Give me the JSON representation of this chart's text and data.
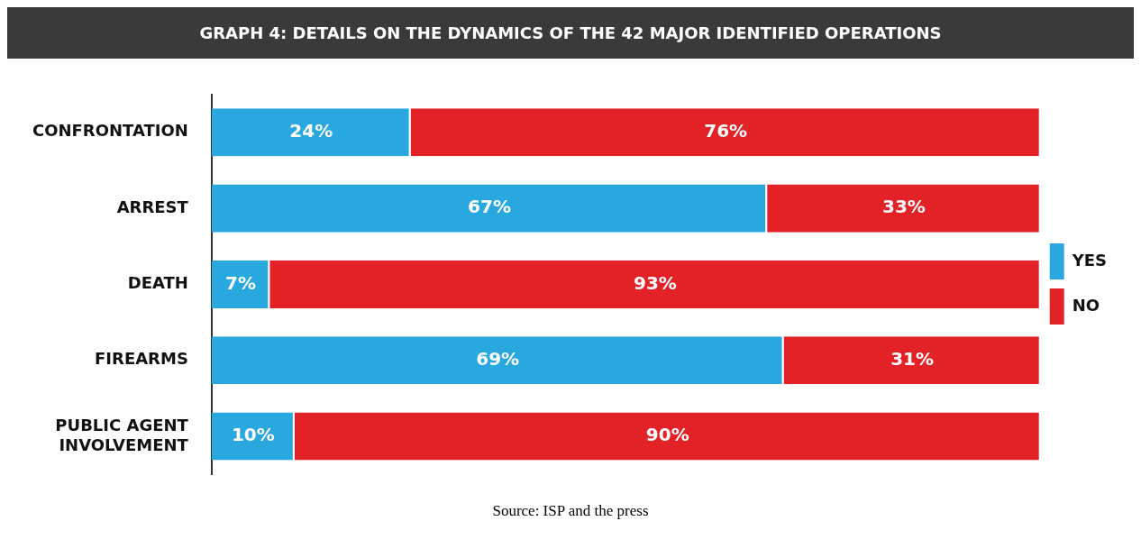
{
  "chart_data": {
    "type": "bar",
    "orientation": "horizontal",
    "stacked": true,
    "title": "GRAPH 4: DETAILS ON THE DYNAMICS OF THE 42 MAJOR IDENTIFIED OPERATIONS",
    "categories": [
      "CONFRONTATION",
      "ARREST",
      "DEATH",
      "FIREARMS",
      "PUBLIC AGENT INVOLVEMENT"
    ],
    "series": [
      {
        "name": "YES",
        "color": "#29a8e0",
        "values": [
          24,
          67,
          7,
          69,
          10
        ],
        "value_labels": [
          "24%",
          "67%",
          "7%",
          "69%",
          "10%"
        ]
      },
      {
        "name": "NO",
        "color": "#e32228",
        "values": [
          76,
          33,
          93,
          31,
          90
        ],
        "value_labels": [
          "76%",
          "33%",
          "93%",
          "31%",
          "90%"
        ]
      }
    ],
    "xlim": [
      0,
      100
    ],
    "tick_labels": "y",
    "grid": false,
    "legend": "right",
    "annotations": [
      "Source: ISP and the press"
    ]
  }
}
